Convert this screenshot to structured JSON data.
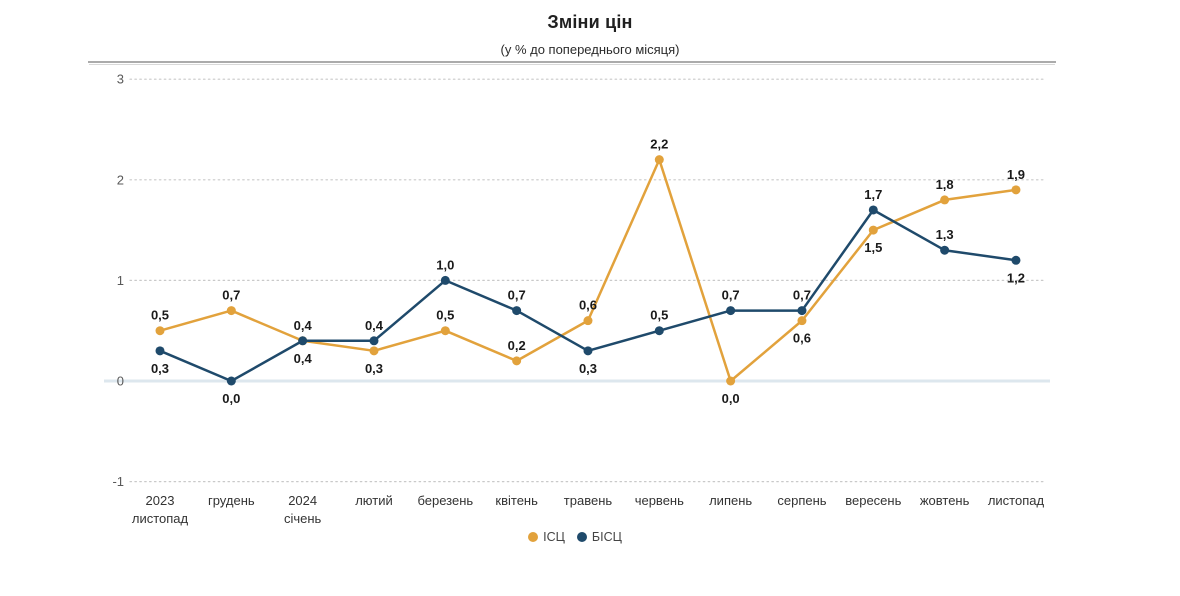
{
  "header": {
    "title": "Зміни цін",
    "subtitle": "(у % до попереднього місяця)"
  },
  "chart_data": {
    "type": "line",
    "title": "Зміни цін",
    "subtitle": "(у % до попереднього місяця)",
    "categories": [
      [
        "2023",
        "листопад"
      ],
      [
        "грудень"
      ],
      [
        "2024",
        "січень"
      ],
      [
        "лютий"
      ],
      [
        "березень"
      ],
      [
        "квітень"
      ],
      [
        "травень"
      ],
      [
        "червень"
      ],
      [
        "липень"
      ],
      [
        "серпень"
      ],
      [
        "вересень"
      ],
      [
        "жовтень"
      ],
      [
        "листопад"
      ]
    ],
    "series": [
      {
        "name": "ІСЦ",
        "color": "#E2A23C",
        "values": [
          0.5,
          0.7,
          0.4,
          0.3,
          0.5,
          0.2,
          0.6,
          2.2,
          0.0,
          0.6,
          1.5,
          1.8,
          1.9
        ],
        "labels": [
          "0,5",
          "0,7",
          "0,4",
          "0,3",
          "0,5",
          "0,2",
          "0,6",
          "2,2",
          "0,0",
          "0,6",
          "1,5",
          "1,8",
          "1,9"
        ],
        "label_pos": [
          "above",
          "above",
          "below",
          "below",
          "above",
          "above",
          "above",
          "above",
          "below",
          "below",
          "below",
          "above",
          "above"
        ]
      },
      {
        "name": "БІСЦ",
        "color": "#1F4A6B",
        "values": [
          0.3,
          0.0,
          0.4,
          0.4,
          1.0,
          0.7,
          0.3,
          0.5,
          0.7,
          0.7,
          1.7,
          1.3,
          1.2
        ],
        "labels": [
          "0,3",
          "0,0",
          "0,4",
          "0,4",
          "1,0",
          "0,7",
          "0,3",
          "0,5",
          "0,7",
          "0,7",
          "1,7",
          "1,3",
          "1,2"
        ],
        "label_pos": [
          "below",
          "below",
          "above",
          "above",
          "above",
          "above",
          "below",
          "above",
          "above",
          "above",
          "above",
          "above",
          "below"
        ]
      }
    ],
    "y_ticks": [
      "3",
      "2",
      "1",
      "0",
      "-1"
    ],
    "ylim": [
      -1,
      3
    ],
    "grid": "horizontal dotted, solid light line at zero",
    "legend_position": "bottom center",
    "value_label_color": "#1a1a1a",
    "tick_label_color": "#595959",
    "category_label_color": "#333333",
    "zero_line_color": "#dde7ee",
    "grid_color": "#c9c9c9",
    "panel_border_color": "#8f8f8f"
  }
}
